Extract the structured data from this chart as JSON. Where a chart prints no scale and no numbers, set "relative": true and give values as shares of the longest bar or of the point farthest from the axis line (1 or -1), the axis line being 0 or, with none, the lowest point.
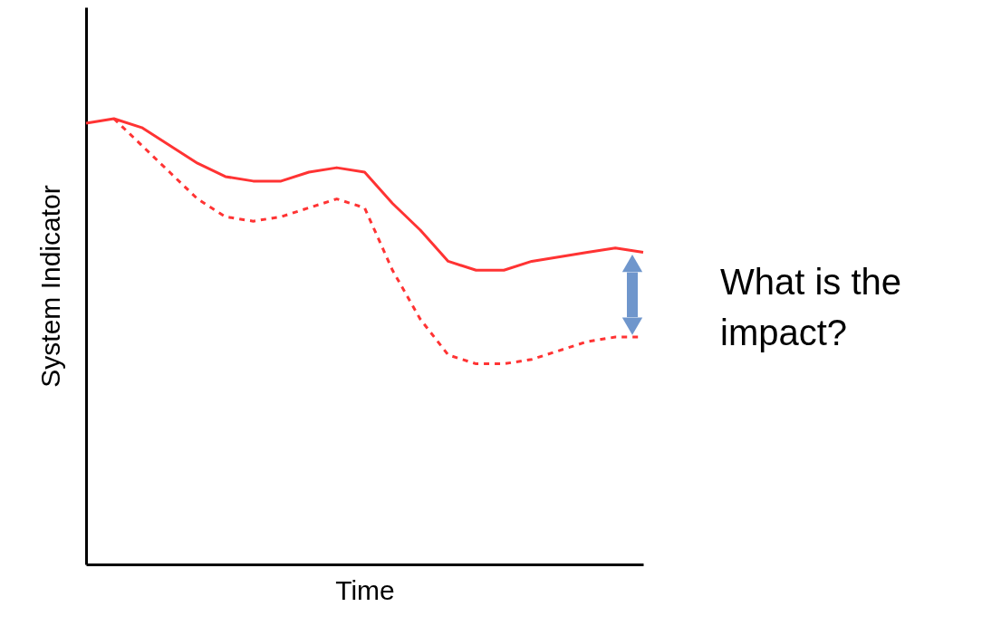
{
  "chart_data": {
    "type": "line",
    "relative": true,
    "xlabel": "Time",
    "ylabel": "System Indicator",
    "categories": [
      null,
      null,
      null,
      null,
      null,
      null,
      null,
      null,
      null,
      null,
      null,
      null,
      null,
      null,
      null,
      null,
      null,
      null,
      null,
      null,
      null
    ],
    "series": [
      {
        "color": "#ff3333",
        "line_style": "solid",
        "values": [
          0.99,
          1.0,
          0.98,
          0.94,
          0.9,
          0.87,
          0.86,
          0.86,
          0.88,
          0.89,
          0.88,
          0.81,
          0.75,
          0.68,
          0.66,
          0.66,
          0.68,
          0.69,
          0.7,
          0.71,
          0.7
        ]
      },
      {
        "color": "#ff3333",
        "line_style": "dashed",
        "values": [
          null,
          1.0,
          0.94,
          0.88,
          0.82,
          0.78,
          0.77,
          0.78,
          0.8,
          0.82,
          0.8,
          0.66,
          0.55,
          0.47,
          0.45,
          0.45,
          0.46,
          0.48,
          0.5,
          0.51,
          0.51
        ]
      }
    ],
    "annotations": [
      "What is the impact?"
    ],
    "grid": false,
    "marker": "none"
  }
}
